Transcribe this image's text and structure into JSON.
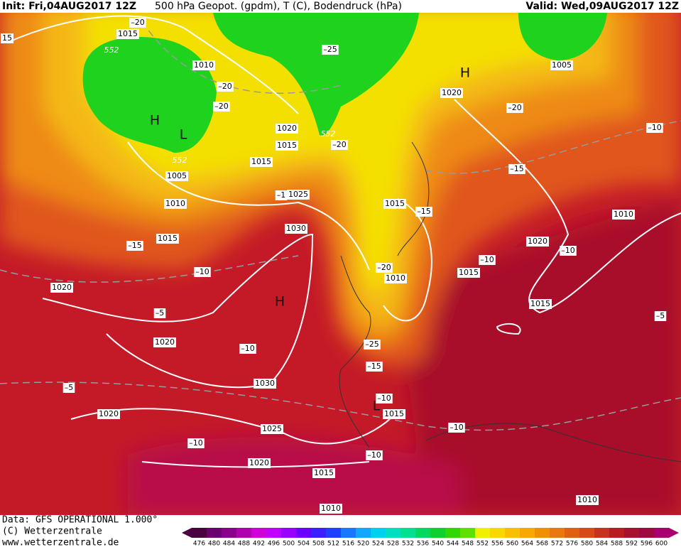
{
  "header": {
    "init": "Init: Fri,04AUG2017 12Z",
    "fields": "500 hPa Geopot. (gpdm), T (C), Bodendruck (hPa)",
    "valid": "Valid: Wed,09AUG2017 12Z"
  },
  "map": {
    "pressure_labels": [
      "1015",
      "1010",
      "1020",
      "1015",
      "1015",
      "1005",
      "1010",
      "1025",
      "1015",
      "1030",
      "1020",
      "1020",
      "1030",
      "1020",
      "1025",
      "1020",
      "1015",
      "1010",
      "1015",
      "1010",
      "1015",
      "1015",
      "1015",
      "1020",
      "1010",
      "1005",
      "1020",
      "1010"
    ],
    "temperature_labels": [
      "–20",
      "–20",
      "–20",
      "–25",
      "–20",
      "–20",
      "–10",
      "–15",
      "–1",
      "–15",
      "–15",
      "–10",
      "–10",
      "–10",
      "–20",
      "–5",
      "–5",
      "–10",
      "–25",
      "–15",
      "–5",
      "–10",
      "–10",
      "–10",
      "–10",
      "15"
    ],
    "height_labels": [
      "552",
      "552",
      "552"
    ],
    "centers": [
      "H",
      "H",
      "H",
      "L",
      "L"
    ]
  },
  "footer": {
    "data": "Data: GFS OPERATIONAL 1.000°",
    "copyright": "(C) Wetterzentrale",
    "url": "www.wetterzentrale.de"
  },
  "colorbar": {
    "labels": [
      476,
      480,
      484,
      488,
      492,
      496,
      500,
      504,
      508,
      512,
      516,
      520,
      524,
      528,
      532,
      536,
      540,
      544,
      548,
      552,
      556,
      560,
      564,
      568,
      572,
      576,
      580,
      584,
      588,
      592,
      596,
      600
    ],
    "colors": [
      "#4b0040",
      "#6a0070",
      "#8a008a",
      "#b000b0",
      "#d000d8",
      "#c000ff",
      "#9a00ff",
      "#6a00ff",
      "#3a20ff",
      "#2040ff",
      "#1878ff",
      "#10a8ff",
      "#00d0f0",
      "#00e0c0",
      "#00e090",
      "#00d860",
      "#10d030",
      "#30d800",
      "#60e000",
      "#f0f000",
      "#f8d800",
      "#f8c000",
      "#f8a800",
      "#f09000",
      "#e87810",
      "#e06010",
      "#d84818",
      "#c83020",
      "#b81c20",
      "#a81030",
      "#a00840",
      "#a80070"
    ]
  }
}
